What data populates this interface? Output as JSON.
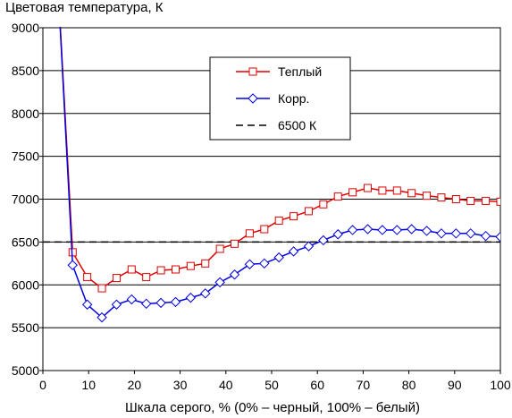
{
  "chart_data": {
    "type": "line",
    "title": "Цветовая температура, К",
    "xlabel": "Шкала серого, % (0% – черный, 100% – белый)",
    "ylabel": "",
    "xlim": [
      0,
      100
    ],
    "ylim": [
      5000,
      9000
    ],
    "xticks": [
      0,
      10,
      20,
      30,
      40,
      50,
      60,
      70,
      80,
      90,
      100
    ],
    "yticks": [
      5000,
      5500,
      6000,
      6500,
      7000,
      7500,
      8000,
      8500,
      9000
    ],
    "grid": "horizontal",
    "legend_position": "top-right",
    "series": [
      {
        "name": "Теплый",
        "color": "#e00000",
        "marker": "square",
        "x": [
          3.2,
          6.5,
          9.7,
          12.9,
          16.1,
          19.4,
          22.6,
          25.8,
          29.0,
          32.3,
          35.5,
          38.7,
          41.9,
          45.2,
          48.4,
          51.6,
          54.8,
          58.1,
          61.3,
          64.5,
          67.7,
          71.0,
          74.2,
          77.4,
          80.6,
          83.9,
          87.1,
          90.3,
          93.5,
          96.8,
          100
        ],
        "values": [
          9600,
          6380,
          6090,
          5960,
          6080,
          6180,
          6090,
          6170,
          6180,
          6220,
          6250,
          6420,
          6480,
          6600,
          6650,
          6750,
          6800,
          6860,
          6940,
          7030,
          7080,
          7130,
          7100,
          7100,
          7070,
          7040,
          7020,
          7000,
          6980,
          6980,
          6970
        ]
      },
      {
        "name": "Корр.",
        "color": "#0000e0",
        "marker": "diamond",
        "x": [
          3.2,
          6.5,
          9.7,
          12.9,
          16.1,
          19.4,
          22.6,
          25.8,
          29.0,
          32.3,
          35.5,
          38.7,
          41.9,
          45.2,
          48.4,
          51.6,
          54.8,
          58.1,
          61.3,
          64.5,
          67.7,
          71.0,
          74.2,
          77.4,
          80.6,
          83.9,
          87.1,
          90.3,
          93.5,
          96.8,
          100
        ],
        "values": [
          9600,
          6230,
          5770,
          5620,
          5770,
          5830,
          5780,
          5790,
          5800,
          5850,
          5900,
          6030,
          6120,
          6240,
          6250,
          6320,
          6390,
          6450,
          6520,
          6590,
          6640,
          6650,
          6640,
          6640,
          6650,
          6630,
          6600,
          6600,
          6600,
          6570,
          6560
        ]
      },
      {
        "name": "6500 К",
        "color": "#000000",
        "dashed": true,
        "x": [
          0,
          100
        ],
        "values": [
          6500,
          6500
        ]
      }
    ]
  }
}
